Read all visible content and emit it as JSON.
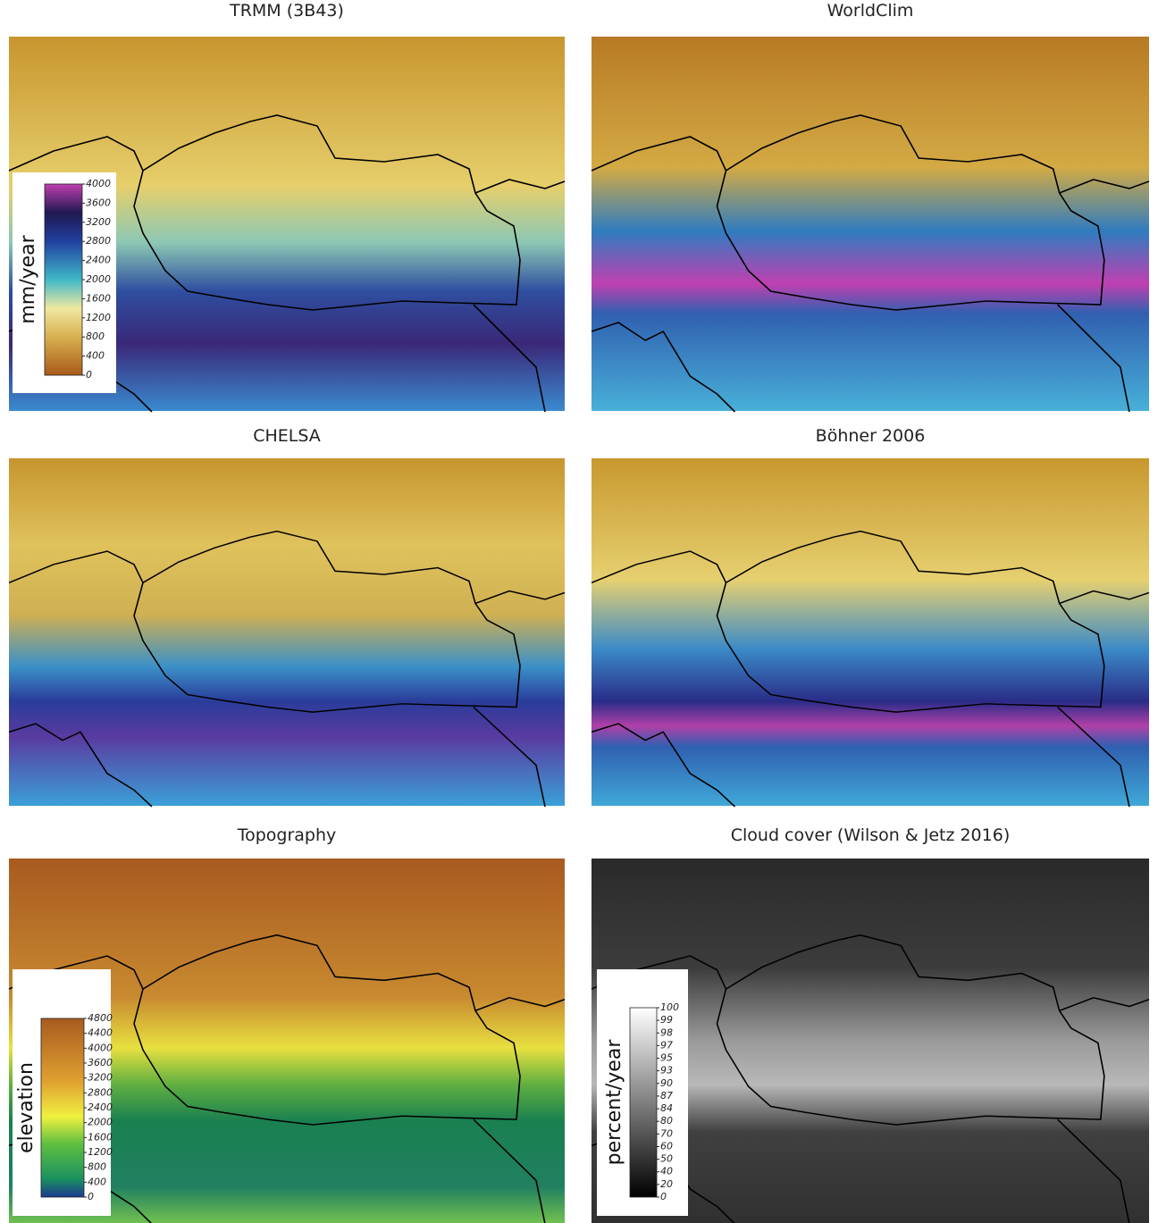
{
  "panels": [
    {
      "title": "TRMM (3B43)",
      "legend": {
        "label": "mm/year",
        "ticks": [
          0,
          400,
          800,
          1200,
          1600,
          2000,
          2400,
          2800,
          3200,
          3600,
          4000
        ]
      }
    },
    {
      "title": "WorldClim"
    },
    {
      "title": "CHELSA"
    },
    {
      "title": "Böhner 2006"
    },
    {
      "title": "Topography",
      "legend": {
        "label": "elevation",
        "ticks": [
          0,
          400,
          800,
          1200,
          1600,
          2000,
          2400,
          2800,
          3200,
          3600,
          4000,
          4400,
          4800
        ]
      }
    },
    {
      "title": "Cloud cover (Wilson & Jetz 2016)",
      "legend": {
        "label": "percent/year",
        "ticks": [
          0,
          20,
          40,
          50,
          60,
          70,
          80,
          84,
          87,
          90,
          93,
          95,
          97,
          98,
          99,
          100
        ]
      }
    }
  ]
}
